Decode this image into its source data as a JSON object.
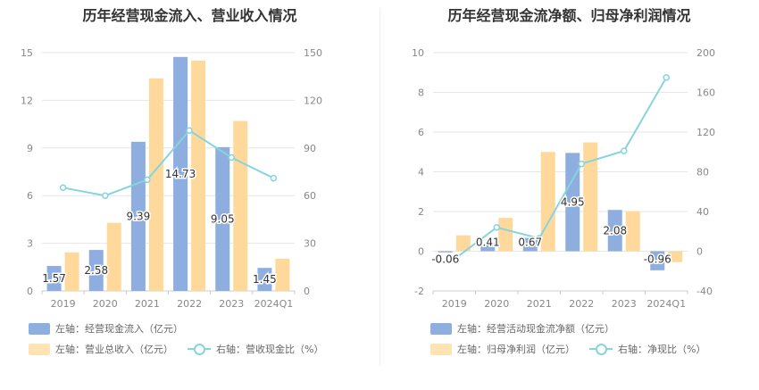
{
  "chart_data": [
    {
      "type": "bar",
      "title": "历年经营现金流入、营业收入情况",
      "categories": [
        "2019",
        "2020",
        "2021",
        "2022",
        "2023",
        "2024Q1"
      ],
      "y_left": {
        "min": 0,
        "max": 15,
        "ticks": [
          0,
          3,
          6,
          9,
          12,
          15
        ]
      },
      "y_right": {
        "min": 0,
        "max": 150,
        "ticks": [
          0,
          30,
          60,
          90,
          120,
          150
        ]
      },
      "series": [
        {
          "name": "左轴：经营现金流入（亿元）",
          "type": "bar",
          "axis": "left",
          "color": "#8eaedf",
          "values": [
            1.57,
            2.58,
            9.39,
            14.73,
            9.05,
            1.45
          ],
          "labels": [
            "1.57",
            "2.58",
            "9.39",
            "14.73",
            "9.05",
            "1.45"
          ]
        },
        {
          "name": "左轴：营业总收入（亿元）",
          "type": "bar",
          "axis": "left",
          "color": "#ffd99b",
          "values": [
            2.42,
            4.29,
            13.38,
            14.5,
            10.7,
            2.03
          ]
        },
        {
          "name": "右轴：营收现金比（%）",
          "type": "line",
          "axis": "right",
          "color": "#86d4de",
          "values": [
            65.0,
            60.0,
            70.0,
            101.0,
            84.0,
            71.0
          ]
        }
      ],
      "grid": true,
      "legend_position": "bottom-left"
    },
    {
      "type": "bar",
      "title": "历年经营现金流净额、归母净利润情况",
      "categories": [
        "2019",
        "2020",
        "2021",
        "2022",
        "2023",
        "2024Q1"
      ],
      "y_left": {
        "min": -2,
        "max": 10,
        "ticks": [
          -2,
          0,
          2,
          4,
          6,
          8,
          10
        ]
      },
      "y_right": {
        "min": -40,
        "max": 200,
        "ticks": [
          -40,
          0,
          40,
          80,
          120,
          160,
          200
        ]
      },
      "series": [
        {
          "name": "左轴：经营活动现金流净额（亿元）",
          "type": "bar",
          "axis": "left",
          "color": "#8eaedf",
          "values": [
            -0.06,
            0.41,
            0.67,
            4.95,
            2.08,
            -0.96
          ],
          "labels": [
            "-0.06",
            "0.41",
            "0.67",
            "4.95",
            "2.08",
            "-0.96"
          ]
        },
        {
          "name": "左轴：归母净利润（亿元）",
          "type": "bar",
          "axis": "left",
          "color": "#ffd99b",
          "values": [
            0.8,
            1.68,
            5.0,
            5.48,
            2.02,
            -0.55
          ]
        },
        {
          "name": "右轴：净现比（%）",
          "type": "line",
          "axis": "right",
          "color": "#86d4de",
          "values": [
            -8.0,
            24.0,
            13.0,
            88.0,
            101.0,
            175.0
          ]
        }
      ],
      "grid": true,
      "legend_position": "bottom-left"
    }
  ]
}
